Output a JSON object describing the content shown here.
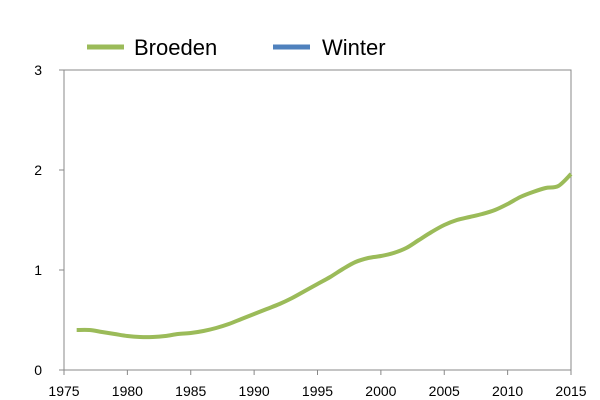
{
  "chart_data": {
    "type": "line",
    "title": "",
    "xlabel": "",
    "ylabel": "",
    "xlim": [
      1975,
      2015
    ],
    "ylim": [
      0,
      3
    ],
    "x_ticks": [
      "1975",
      "1980",
      "1985",
      "1990",
      "1995",
      "2000",
      "2005",
      "2010",
      "2015"
    ],
    "y_ticks": [
      "0",
      "1",
      "2",
      "3"
    ],
    "grid": false,
    "legend": {
      "position": "top",
      "entries": [
        {
          "name": "Broeden",
          "color": "#9bbb59"
        },
        {
          "name": "Winter",
          "color": "#4f81bd"
        }
      ]
    },
    "series": [
      {
        "name": "Broeden",
        "color": "#9bbb59",
        "x": [
          1976,
          1977,
          1978,
          1979,
          1980,
          1981,
          1982,
          1983,
          1984,
          1985,
          1986,
          1987,
          1988,
          1989,
          1990,
          1991,
          1992,
          1993,
          1994,
          1995,
          1996,
          1997,
          1998,
          1999,
          2000,
          2001,
          2002,
          2003,
          2004,
          2005,
          2006,
          2007,
          2008,
          2009,
          2010,
          2011,
          2012,
          2013,
          2014,
          2015
        ],
        "values": [
          0.4,
          0.4,
          0.38,
          0.36,
          0.34,
          0.33,
          0.33,
          0.34,
          0.36,
          0.37,
          0.39,
          0.42,
          0.46,
          0.51,
          0.56,
          0.61,
          0.66,
          0.72,
          0.79,
          0.86,
          0.93,
          1.01,
          1.08,
          1.12,
          1.14,
          1.17,
          1.22,
          1.3,
          1.38,
          1.45,
          1.5,
          1.53,
          1.56,
          1.6,
          1.66,
          1.73,
          1.78,
          1.82,
          1.84,
          1.96
        ]
      },
      {
        "name": "Winter",
        "color": "#4f81bd",
        "x": [],
        "values": []
      }
    ]
  }
}
